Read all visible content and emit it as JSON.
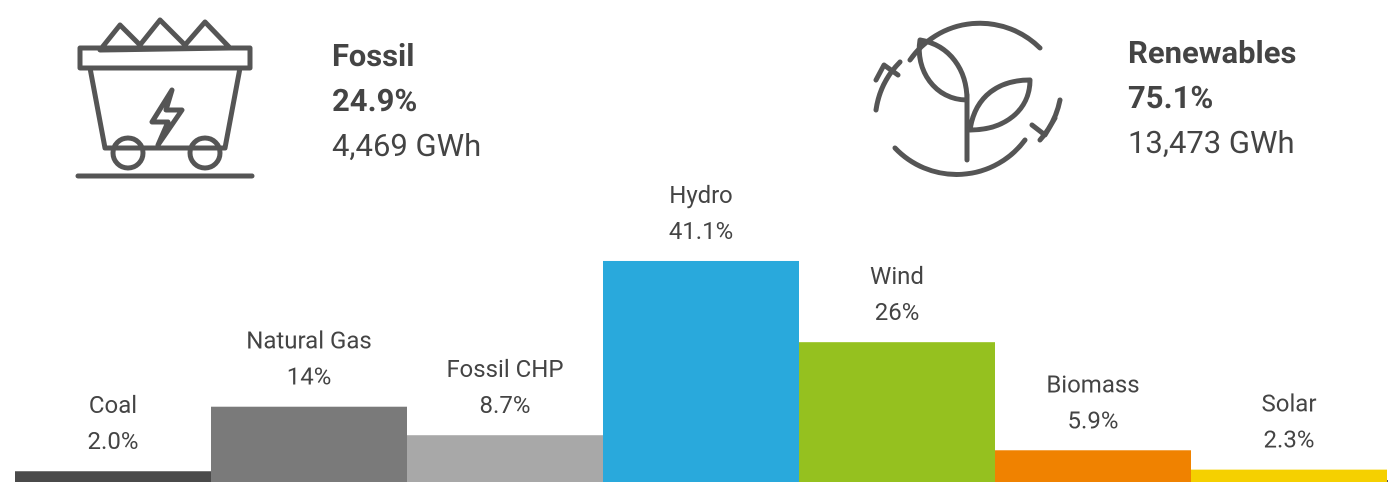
{
  "summary": [
    {
      "name": "Fossil",
      "share": "24.9%",
      "energy": "4,469 GWh"
    },
    {
      "name": "Renewables",
      "share": "75.1%",
      "energy": "13,473 GWh"
    }
  ],
  "chart_data": {
    "type": "bar",
    "categories": [
      "Coal",
      "Natural Gas",
      "Fossil CHP",
      "Hydro",
      "Wind",
      "Biomass",
      "Solar"
    ],
    "values": [
      2.0,
      14,
      8.7,
      41.1,
      26,
      5.9,
      2.3
    ],
    "value_labels": [
      "2.0%",
      "14%",
      "8.7%",
      "41.1%",
      "26%",
      "5.9%",
      "2.3%"
    ],
    "colors": [
      "#4a4a4a",
      "#7a7a7a",
      "#a8a8a8",
      "#29a9dc",
      "#95c11f",
      "#f08200",
      "#f5d000"
    ],
    "ylim": [
      0,
      45
    ]
  }
}
